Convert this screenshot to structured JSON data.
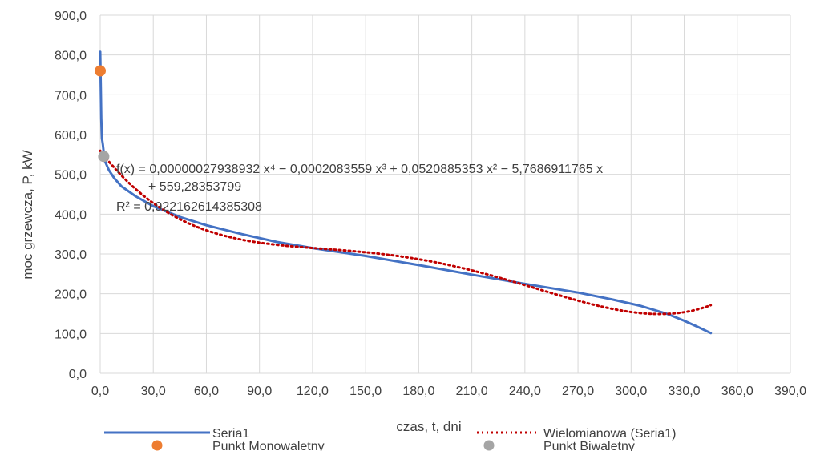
{
  "chart_data": {
    "type": "line",
    "title": "",
    "xlabel": "czas, t, dni",
    "ylabel": "moc grzewcza, P, kW",
    "xlim": [
      0,
      390
    ],
    "ylim": [
      0,
      900
    ],
    "x_ticks": [
      "0,0",
      "30,0",
      "60,0",
      "90,0",
      "120,0",
      "150,0",
      "180,0",
      "210,0",
      "240,0",
      "270,0",
      "300,0",
      "330,0",
      "360,0",
      "390,0"
    ],
    "y_ticks": [
      "0,0",
      "100,0",
      "200,0",
      "300,0",
      "400,0",
      "500,0",
      "600,0",
      "700,0",
      "800,0",
      "900,0"
    ],
    "grid": true,
    "legend_position": "bottom",
    "series": [
      {
        "name": "Seria1",
        "kind": "line",
        "color": "#4472c4",
        "x": [
          0,
          0.3,
          0.6,
          1,
          1.5,
          2,
          3,
          5,
          8,
          12,
          20,
          30,
          45,
          60,
          80,
          100,
          120,
          150,
          180,
          210,
          240,
          270,
          290,
          305,
          320,
          330,
          338,
          345
        ],
        "y": [
          808,
          720,
          640,
          590,
          575,
          555,
          530,
          510,
          490,
          470,
          445,
          420,
          393,
          372,
          350,
          330,
          315,
          295,
          272,
          248,
          225,
          203,
          185,
          170,
          150,
          132,
          116,
          101
        ]
      },
      {
        "name": "Wielomianowa (Seria1)",
        "kind": "trendline",
        "color": "#c00000",
        "coefficients": [
          559.28353799,
          -5.7686911765,
          0.0520885353,
          -0.0002083559,
          2.7938932e-07
        ],
        "x_range": [
          0,
          345
        ]
      },
      {
        "name": "Punkt Monowaletny",
        "kind": "point",
        "color": "#ed7d31",
        "x": [
          0
        ],
        "y": [
          760
        ]
      },
      {
        "name": "Punkt Biwaletny",
        "kind": "point",
        "color": "#a5a5a5",
        "x": [
          2
        ],
        "y": [
          545
        ]
      }
    ],
    "annotation": {
      "equation_line1": "f(x) = 0,00000027938932 x⁴ − 0,0002083559 x³ + 0,0520885353 x² − 5,7686911765 x",
      "equation_line2": "+ 559,28353799",
      "r_squared": "R² = 0,922162614385308"
    }
  }
}
